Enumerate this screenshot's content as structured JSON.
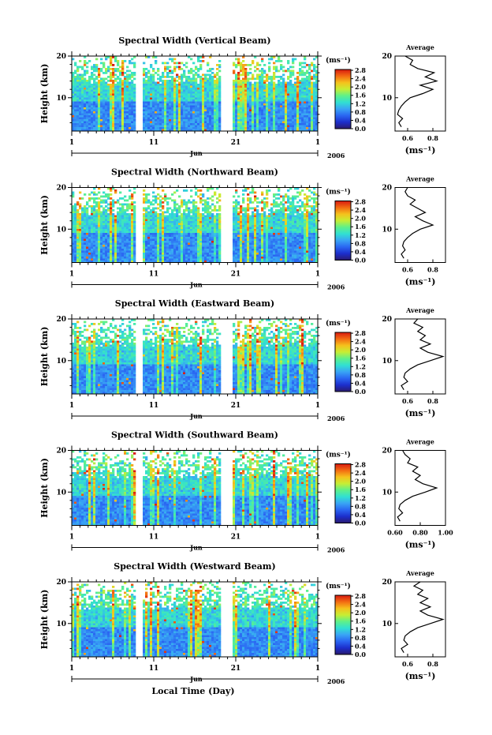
{
  "figure": {
    "xlabel": "Local Time (Day)",
    "ylabel": "Height (km)",
    "month": "Jun",
    "year": "2006",
    "avg_title": "Average",
    "avg_unit": "(ms⁻¹)",
    "colorbar_unit": "(ms⁻¹)",
    "colorbar_ticks": [
      "0.0",
      "0.4",
      "0.8",
      "1.2",
      "1.6",
      "2.0",
      "2.4",
      "2.8"
    ],
    "colorbar_stops": [
      "#2a1a6e",
      "#1c2ecc",
      "#2a66f2",
      "#39a4f5",
      "#31e0d2",
      "#5ef08a",
      "#c7ee34",
      "#f5c21c",
      "#f36b12",
      "#d81a10"
    ]
  },
  "chart_data": [
    {
      "type": "heatmap",
      "title": "Spectral Width (Vertical Beam)",
      "xlabel": "Local Time (Day)",
      "ylabel": "Height (km)",
      "x_ticks": [
        "1",
        "11",
        "21",
        "1"
      ],
      "xlim": [
        1,
        31
      ],
      "ylim": [
        2,
        20
      ],
      "y_ticks": [
        "10",
        "20"
      ],
      "colorbar_ticks": [
        "0.0",
        "0.4",
        "0.8",
        "1.2",
        "1.6",
        "2.0",
        "2.4",
        "2.8"
      ],
      "data_gaps_days": [
        [
          8.7,
          9.6
        ],
        [
          19.2,
          20.6
        ]
      ],
      "average_profile": {
        "title": "Average",
        "xlabel": "(ms⁻¹)",
        "x_ticks": [
          "0.6",
          "0.8"
        ],
        "xlim": [
          0.5,
          0.9
        ],
        "y_ticks": [
          "10",
          "20"
        ],
        "height_km": [
          3,
          4,
          5,
          6,
          7,
          8,
          9,
          10,
          11,
          12,
          13,
          14,
          15,
          16,
          17,
          18,
          19,
          20
        ],
        "values": [
          0.55,
          0.53,
          0.56,
          0.52,
          0.53,
          0.55,
          0.58,
          0.62,
          0.72,
          0.8,
          0.7,
          0.83,
          0.74,
          0.81,
          0.68,
          0.62,
          0.64,
          0.58
        ]
      }
    },
    {
      "type": "heatmap",
      "title": "Spectral Width (Northward Beam)",
      "xlabel": "Local Time (Day)",
      "ylabel": "Height (km)",
      "x_ticks": [
        "1",
        "11",
        "21",
        "1"
      ],
      "xlim": [
        1,
        31
      ],
      "ylim": [
        2,
        20
      ],
      "y_ticks": [
        "10",
        "20"
      ],
      "colorbar_ticks": [
        "0.0",
        "0.4",
        "0.8",
        "1.2",
        "1.6",
        "2.0",
        "2.4",
        "2.8"
      ],
      "data_gaps_days": [
        [
          8.7,
          9.6
        ],
        [
          19.2,
          20.6
        ]
      ],
      "average_profile": {
        "title": "Average",
        "xlabel": "(ms⁻¹)",
        "x_ticks": [
          "0.6",
          "0.8"
        ],
        "xlim": [
          0.5,
          0.9
        ],
        "y_ticks": [
          "10",
          "20"
        ],
        "height_km": [
          3,
          4,
          5,
          6,
          7,
          8,
          9,
          10,
          11,
          12,
          13,
          14,
          15,
          16,
          17,
          18,
          19,
          20
        ],
        "values": [
          0.57,
          0.55,
          0.58,
          0.56,
          0.57,
          0.6,
          0.64,
          0.7,
          0.8,
          0.72,
          0.66,
          0.74,
          0.68,
          0.62,
          0.66,
          0.6,
          0.58,
          0.6
        ]
      }
    },
    {
      "type": "heatmap",
      "title": "Spectral Width (Eastward Beam)",
      "xlabel": "Local Time (Day)",
      "ylabel": "Height (km)",
      "x_ticks": [
        "1",
        "11",
        "21",
        "1"
      ],
      "xlim": [
        1,
        31
      ],
      "ylim": [
        2,
        20
      ],
      "y_ticks": [
        "10",
        "20"
      ],
      "colorbar_ticks": [
        "0.0",
        "0.4",
        "0.8",
        "1.2",
        "1.6",
        "2.0",
        "2.4",
        "2.8"
      ],
      "data_gaps_days": [
        [
          8.7,
          9.6
        ],
        [
          19.2,
          20.6
        ]
      ],
      "average_profile": {
        "title": "Average",
        "xlabel": "(ms⁻¹)",
        "x_ticks": [
          "0.6",
          "0.8"
        ],
        "xlim": [
          0.5,
          0.9
        ],
        "y_ticks": [
          "10",
          "20"
        ],
        "height_km": [
          3,
          4,
          5,
          6,
          7,
          8,
          9,
          10,
          11,
          12,
          13,
          14,
          15,
          16,
          17,
          18,
          19,
          20
        ],
        "values": [
          0.57,
          0.55,
          0.6,
          0.57,
          0.58,
          0.62,
          0.68,
          0.78,
          0.88,
          0.76,
          0.7,
          0.78,
          0.7,
          0.74,
          0.68,
          0.72,
          0.65,
          0.68
        ]
      }
    },
    {
      "type": "heatmap",
      "title": "Spectral Width (Southward Beam)",
      "xlabel": "Local Time (Day)",
      "ylabel": "Height (km)",
      "x_ticks": [
        "1",
        "11",
        "21",
        "1"
      ],
      "xlim": [
        1,
        31
      ],
      "ylim": [
        2,
        20
      ],
      "y_ticks": [
        "10",
        "20"
      ],
      "colorbar_ticks": [
        "0.0",
        "0.4",
        "0.8",
        "1.2",
        "1.6",
        "2.0",
        "2.4",
        "2.8"
      ],
      "data_gaps_days": [
        [
          8.7,
          9.6
        ],
        [
          19.2,
          20.6
        ]
      ],
      "average_profile": {
        "title": "Average",
        "xlabel": "(ms⁻¹)",
        "x_ticks": [
          "0.60",
          "0.80",
          "1.00"
        ],
        "xlim": [
          0.6,
          1.0
        ],
        "y_ticks": [
          "10",
          "20"
        ],
        "height_km": [
          3,
          4,
          5,
          6,
          7,
          8,
          9,
          10,
          11,
          12,
          13,
          14,
          15,
          16,
          17,
          18,
          19,
          20
        ],
        "values": [
          0.64,
          0.62,
          0.66,
          0.63,
          0.64,
          0.68,
          0.74,
          0.84,
          0.93,
          0.82,
          0.76,
          0.8,
          0.74,
          0.78,
          0.7,
          0.72,
          0.68,
          0.66
        ]
      }
    },
    {
      "type": "heatmap",
      "title": "Spectral Width (Westward Beam)",
      "xlabel": "Local Time (Day)",
      "ylabel": "Height (km)",
      "x_ticks": [
        "1",
        "11",
        "21",
        "1"
      ],
      "xlim": [
        1,
        31
      ],
      "ylim": [
        2,
        20
      ],
      "y_ticks": [
        "10",
        "20"
      ],
      "colorbar_ticks": [
        "0.0",
        "0.4",
        "0.8",
        "1.2",
        "1.6",
        "2.0",
        "2.4",
        "2.8"
      ],
      "data_gaps_days": [
        [
          8.7,
          9.6
        ],
        [
          19.2,
          20.6
        ]
      ],
      "average_profile": {
        "title": "Average",
        "xlabel": "(ms⁻¹)",
        "x_ticks": [
          "0.6",
          "0.8"
        ],
        "xlim": [
          0.5,
          0.9
        ],
        "y_ticks": [
          "10",
          "20"
        ],
        "height_km": [
          3,
          4,
          5,
          6,
          7,
          8,
          9,
          10,
          11,
          12,
          13,
          14,
          15,
          16,
          17,
          18,
          19,
          20
        ],
        "values": [
          0.57,
          0.55,
          0.6,
          0.57,
          0.58,
          0.62,
          0.68,
          0.78,
          0.88,
          0.76,
          0.7,
          0.78,
          0.7,
          0.76,
          0.68,
          0.72,
          0.65,
          0.7
        ]
      }
    }
  ]
}
